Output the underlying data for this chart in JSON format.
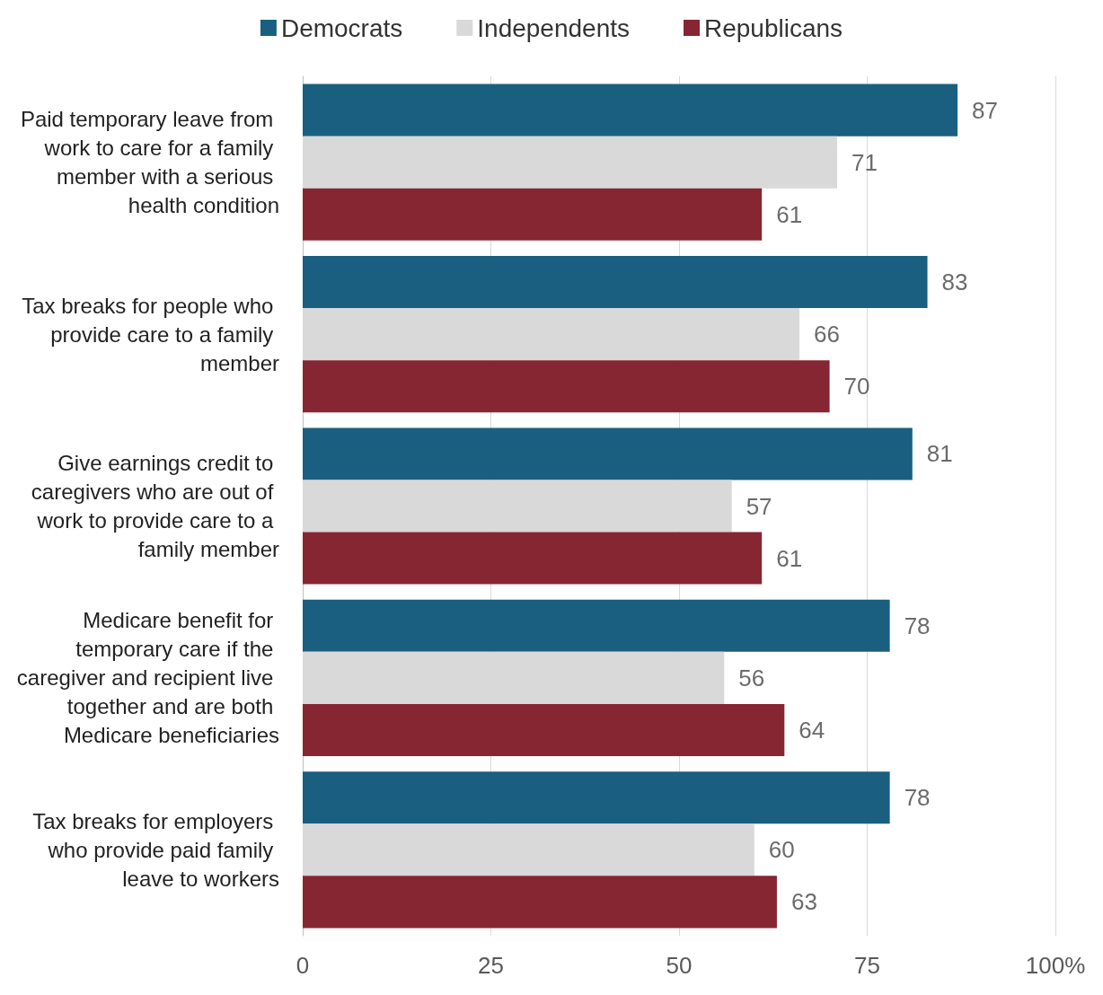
{
  "chart_data": {
    "type": "bar",
    "orientation": "horizontal",
    "categories": [
      "Paid temporary leave from work to care for a family member with a serious health condition",
      "Tax breaks for people who provide care to a family member",
      "Give earnings credit to caregivers who are out of work to provide care to a family member",
      "Medicare benefit for temporary care if the caregiver and recipient live together and are both Medicare beneficiaries",
      "Tax breaks for employers who provide paid family leave to workers"
    ],
    "series": [
      {
        "name": "Democrats",
        "color": "#1a5f80",
        "values": [
          87,
          83,
          81,
          78,
          78
        ]
      },
      {
        "name": "Independents",
        "color": "#d9d9d9",
        "values": [
          71,
          66,
          57,
          56,
          60
        ]
      },
      {
        "name": "Republicans",
        "color": "#862633",
        "values": [
          61,
          70,
          61,
          64,
          63
        ]
      }
    ],
    "xlim": [
      0,
      100
    ],
    "xticks": [
      0,
      25,
      50,
      75,
      {
        "value": 100,
        "label": "100%"
      }
    ],
    "grid": "x",
    "legend": "top",
    "data_labels": true
  }
}
